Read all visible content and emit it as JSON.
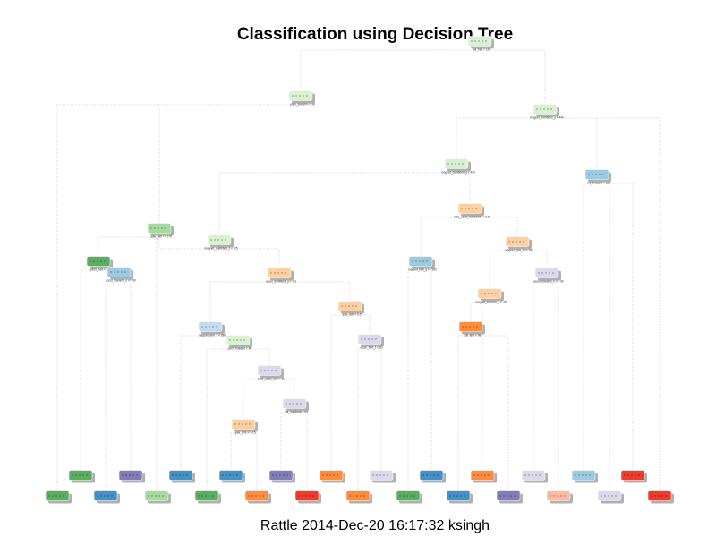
{
  "title": "Classification using Decision Tree",
  "caption": "Rattle 2014-Dec-20 16:17:32 ksingh",
  "colors": {
    "green_light": "#d9f0d3",
    "green_mid": "#a6dba0",
    "green_dark": "#5aae61",
    "blue_light": "#c6dbef",
    "blue_mid": "#9ecae1",
    "blue_dark": "#4292c6",
    "orange_light": "#fdd0a2",
    "orange_dark": "#fd8d3c",
    "purple_light": "#dadaeb",
    "purple_dark": "#807dba",
    "red_light": "#fcbba1",
    "red_dark": "#ef3b2c",
    "edge": "#cccccc",
    "shadow": "#b0b0b0"
  },
  "tree": {
    "nodes": [
      {
        "id": "n1",
        "color": "green_light",
        "rule": "roll_belt < 130"
      },
      {
        "id": "n2",
        "color": "green_light",
        "rule": "pitch_forearm < -34"
      },
      {
        "id": "n3",
        "color": "green_light",
        "rule": "magnet_dumbbell_y < 440"
      },
      {
        "id": "n4",
        "color": "blue_mid",
        "rule": "roll_forearm < 120"
      },
      {
        "id": "n5",
        "color": "green_light",
        "rule": "magnet_dumbbell_y < 440"
      },
      {
        "id": "n6",
        "color": "orange_light",
        "rule": "total_accel_dumbbell >= 6.5"
      },
      {
        "id": "n7",
        "color": "green_mid",
        "rule": "yaw_belt >= 170"
      },
      {
        "id": "n8",
        "color": "green_light",
        "rule": "magnet_dumbbell_z < -25"
      },
      {
        "id": "n9",
        "color": "green_dark",
        "rule": "pitch_belt < -43"
      },
      {
        "id": "n10",
        "color": "blue_mid",
        "rule": "accel_forearm_x >= -90"
      },
      {
        "id": "n11",
        "color": "orange_light",
        "rule": "accel_dumbbell_y < 1.3"
      },
      {
        "id": "n12",
        "color": "blue_mid",
        "rule": "magnet_belt_y >= 560"
      },
      {
        "id": "n13",
        "color": "orange_light",
        "rule": "magnet_belt_z >= 290"
      },
      {
        "id": "n14",
        "color": "purple_light",
        "rule": "accel_forearm_x >= -90"
      },
      {
        "id": "n15",
        "color": "orange_light",
        "rule": "magnet_forearm_z < -66"
      },
      {
        "id": "n16",
        "color": "orange_light",
        "rule": "yaw_arm < 0.5"
      },
      {
        "id": "n17",
        "color": "purple_light",
        "rule": "accel_belt_z < 30"
      },
      {
        "id": "n18",
        "color": "blue_light",
        "rule": "magnet_arm_x < 290"
      },
      {
        "id": "n19",
        "color": "green_light",
        "rule": "pitch_forearm < 40"
      },
      {
        "id": "n20",
        "color": "orange_dark",
        "rule": "roll_arm < 99"
      },
      {
        "id": "n21",
        "color": "purple_light",
        "rule": "total_accel_arm < 19"
      },
      {
        "id": "n22",
        "color": "purple_light",
        "rule": "roll_dumbbell < 63"
      },
      {
        "id": "n23",
        "color": "orange_light",
        "rule": "yaw_arm >= -15"
      }
    ],
    "leaves_upper": [
      {
        "id": "u1",
        "color": "green_dark"
      },
      {
        "id": "u2",
        "color": "purple_dark"
      },
      {
        "id": "u3",
        "color": "blue_dark"
      },
      {
        "id": "u4",
        "color": "blue_dark"
      },
      {
        "id": "u5",
        "color": "purple_dark"
      },
      {
        "id": "u6",
        "color": "orange_dark"
      },
      {
        "id": "u7",
        "color": "purple_light"
      },
      {
        "id": "u8",
        "color": "blue_dark"
      },
      {
        "id": "u9",
        "color": "orange_dark"
      },
      {
        "id": "u10",
        "color": "purple_light"
      },
      {
        "id": "u11",
        "color": "blue_mid"
      },
      {
        "id": "u12",
        "color": "red_dark"
      }
    ],
    "leaves_lower": [
      {
        "id": "l1",
        "color": "green_dark"
      },
      {
        "id": "l2",
        "color": "blue_dark"
      },
      {
        "id": "l3",
        "color": "green_mid"
      },
      {
        "id": "l4",
        "color": "green_dark"
      },
      {
        "id": "l5",
        "color": "orange_dark"
      },
      {
        "id": "l6",
        "color": "red_dark"
      },
      {
        "id": "l7",
        "color": "orange_dark"
      },
      {
        "id": "l8",
        "color": "green_dark"
      },
      {
        "id": "l9",
        "color": "blue_dark"
      },
      {
        "id": "l10",
        "color": "purple_dark"
      },
      {
        "id": "l11",
        "color": "red_light"
      },
      {
        "id": "l12",
        "color": "purple_light"
      },
      {
        "id": "l13",
        "color": "red_dark"
      }
    ]
  }
}
